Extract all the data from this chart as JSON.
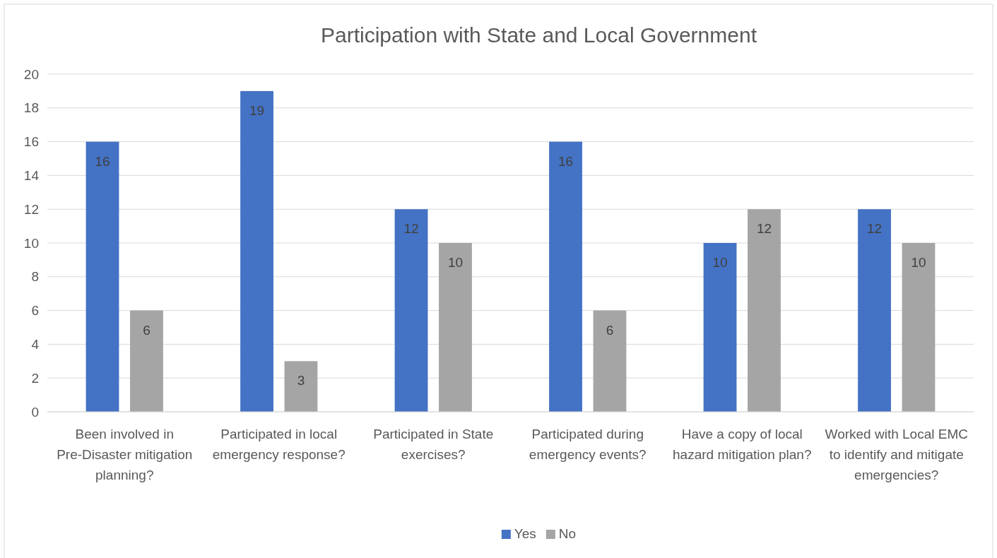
{
  "chart_data": {
    "type": "bar",
    "title": "Participation with State and Local Government",
    "categories": [
      "Been involved in Pre-Disaster mitigation planning?",
      "Participated in local emergency response?",
      "Participated in State exercises?",
      "Participated during emergency events?",
      "Have a copy of local hazard mitigation plan?",
      "Worked with Local EMC to identify and mitigate emergencies?"
    ],
    "series": [
      {
        "name": "Yes",
        "color": "#4472c4",
        "values": [
          16,
          19,
          12,
          16,
          10,
          12
        ]
      },
      {
        "name": "No",
        "color": "#a5a5a5",
        "values": [
          6,
          3,
          10,
          6,
          12,
          10
        ]
      }
    ],
    "ylim": [
      0,
      20
    ],
    "yticks": [
      0,
      2,
      4,
      6,
      8,
      10,
      12,
      14,
      16,
      18,
      20
    ],
    "grid": "y",
    "legend": "bottom",
    "data_labels": true
  }
}
